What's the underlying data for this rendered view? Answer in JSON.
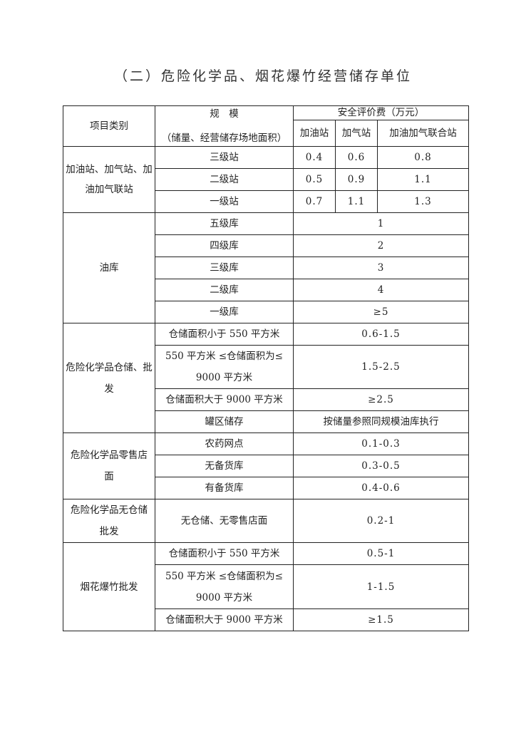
{
  "title": "（二）危险化学品、烟花爆竹经营储存单位",
  "header": {
    "category": "项目类别",
    "scale_line1": "规　模",
    "scale_line2": "（储量、经营储存场地面积）",
    "fee": "安全评价费（万元）",
    "sub": [
      "加油站",
      "加气站",
      "加油加气联合站"
    ]
  },
  "groups": {
    "station": {
      "label": "加油站、加气站、加油加气联站",
      "rows": [
        {
          "scale": "三级站",
          "values": [
            "0.4",
            "0.6",
            "0.8"
          ]
        },
        {
          "scale": "二级站",
          "values": [
            "0.5",
            "0.9",
            "1.1"
          ]
        },
        {
          "scale": "一级站",
          "values": [
            "0.7",
            "1.1",
            "1.3"
          ]
        }
      ]
    },
    "depot": {
      "label": "油库",
      "rows": [
        {
          "scale": "五级库",
          "fee": "1"
        },
        {
          "scale": "四级库",
          "fee": "2"
        },
        {
          "scale": "三级库",
          "fee": "3"
        },
        {
          "scale": "二级库",
          "fee": "4"
        },
        {
          "scale": "一级库",
          "fee": "≥5"
        }
      ]
    },
    "chem_storage": {
      "label": "危险化学品仓储、批发",
      "rows": [
        {
          "scale": "仓储面积小于 550 平方米",
          "fee": "0.6-1.5"
        },
        {
          "scale": "550 平方米 ≤仓储面积为≤ 9000 平方米",
          "fee": "1.5-2.5"
        },
        {
          "scale": "仓储面积大于 9000 平方米",
          "fee": "≥2.5"
        },
        {
          "scale": "罐区储存",
          "fee": "按储量参照同规模油库执行"
        }
      ]
    },
    "chem_retail": {
      "label": "危险化学品零售店面",
      "rows": [
        {
          "scale": "农药网点",
          "fee": "0.1-0.3"
        },
        {
          "scale": "无备货库",
          "fee": "0.3-0.5"
        },
        {
          "scale": "有备货库",
          "fee": "0.4-0.6"
        }
      ]
    },
    "chem_nostore": {
      "label": "危险化学品无仓储批发",
      "rows": [
        {
          "scale": "无仓储、无零售店面",
          "fee": "0.2-1"
        }
      ]
    },
    "fireworks": {
      "label": "烟花爆竹批发",
      "rows": [
        {
          "scale": "仓储面积小于 550 平方米",
          "fee": "0.5-1"
        },
        {
          "scale": "550 平方米 ≤仓储面积为≤ 9000 平方米",
          "fee": "1-1.5"
        },
        {
          "scale": "仓储面积大于 9000 平方米",
          "fee": "≥1.5"
        }
      ]
    }
  }
}
